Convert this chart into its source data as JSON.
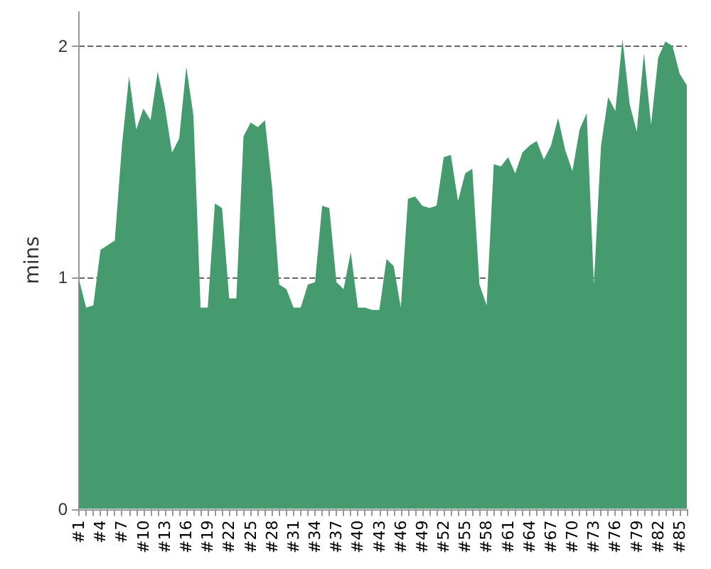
{
  "chart_data": {
    "type": "area",
    "ylabel": "mins",
    "categories": [
      "#1",
      null,
      null,
      "#4",
      null,
      null,
      "#7",
      null,
      null,
      "#10",
      null,
      null,
      "#13",
      null,
      null,
      "#16",
      null,
      null,
      "#19",
      null,
      null,
      "#22",
      null,
      null,
      "#25",
      null,
      null,
      "#28",
      null,
      null,
      "#31",
      null,
      null,
      "#34",
      null,
      null,
      "#37",
      null,
      null,
      "#40",
      null,
      null,
      "#43",
      null,
      null,
      "#46",
      null,
      null,
      "#49",
      null,
      null,
      "#52",
      null,
      null,
      "#55",
      null,
      null,
      "#58",
      null,
      null,
      "#61",
      null,
      null,
      "#64",
      null,
      null,
      "#67",
      null,
      null,
      "#70",
      null,
      null,
      "#73",
      null,
      null,
      "#76",
      null,
      null,
      "#79",
      null,
      null,
      "#82",
      null,
      null,
      "#85",
      null
    ],
    "series": [
      {
        "color": "#459b6e",
        "values": [
          0.99,
          0.87,
          0.88,
          1.12,
          1.14,
          1.16,
          1.57,
          1.87,
          1.64,
          1.73,
          1.68,
          1.89,
          1.74,
          1.54,
          1.6,
          1.91,
          1.7,
          0.87,
          0.87,
          1.32,
          1.3,
          0.91,
          0.91,
          1.61,
          1.67,
          1.65,
          1.68,
          1.39,
          0.97,
          0.95,
          0.87,
          0.87,
          0.97,
          0.98,
          1.31,
          1.3,
          0.98,
          0.95,
          1.11,
          0.87,
          0.87,
          0.86,
          0.86,
          1.08,
          1.05,
          0.87,
          1.34,
          1.35,
          1.31,
          1.3,
          1.31,
          1.52,
          1.53,
          1.33,
          1.45,
          1.47,
          0.97,
          0.88,
          1.49,
          1.48,
          1.52,
          1.45,
          1.54,
          1.57,
          1.59,
          1.51,
          1.57,
          1.69,
          1.55,
          1.46,
          1.64,
          1.71,
          0.97,
          1.57,
          1.78,
          1.72,
          2.03,
          1.75,
          1.63,
          1.97,
          1.66,
          1.95,
          2.02,
          2.0,
          1.88,
          1.83
        ]
      }
    ],
    "ylim": [
      0,
      2.15
    ],
    "yticks": [
      0,
      1,
      2
    ],
    "grid": "y"
  }
}
